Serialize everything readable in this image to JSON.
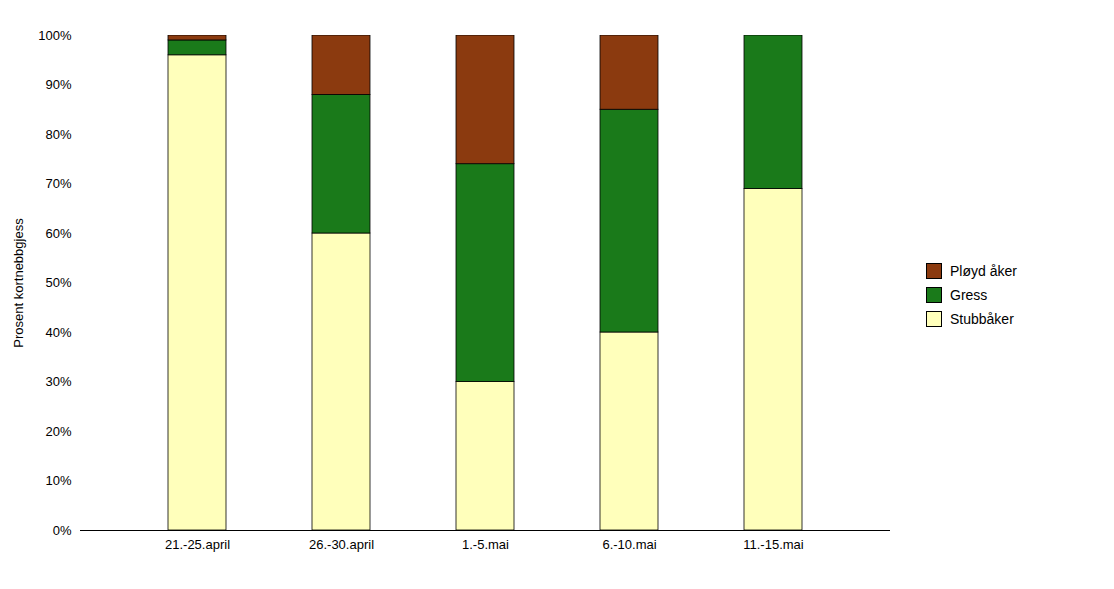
{
  "chart_data": {
    "type": "bar",
    "stacked": true,
    "categories": [
      "21.-25.april",
      "26.-30.april",
      "1.-5.mai",
      "6.-10.mai",
      "11.-15.mai"
    ],
    "series": [
      {
        "name": "Stubbåker",
        "color": "#FFFFBB",
        "values": [
          96,
          60,
          30,
          40,
          69
        ]
      },
      {
        "name": "Gress",
        "color": "#1A7A1A",
        "values": [
          3,
          28,
          44,
          45,
          31
        ]
      },
      {
        "name": "Pløyd åker",
        "color": "#8B3A0F",
        "values": [
          1,
          12,
          26,
          15,
          0
        ]
      }
    ],
    "ylabel": "Prosent kortnebbgjess",
    "ylim": [
      0,
      100
    ],
    "yticks": [
      {
        "value": 0,
        "label": "0%"
      },
      {
        "value": 10,
        "label": "10%"
      },
      {
        "value": 20,
        "label": "20%"
      },
      {
        "value": 30,
        "label": "30%"
      },
      {
        "value": 40,
        "label": "40%"
      },
      {
        "value": 50,
        "label": "50%"
      },
      {
        "value": 60,
        "label": "60%"
      },
      {
        "value": 70,
        "label": "70%"
      },
      {
        "value": 80,
        "label": "80%"
      },
      {
        "value": 90,
        "label": "90%"
      },
      {
        "value": 100,
        "label": "100%"
      }
    ],
    "grid": false,
    "legend": "right"
  }
}
